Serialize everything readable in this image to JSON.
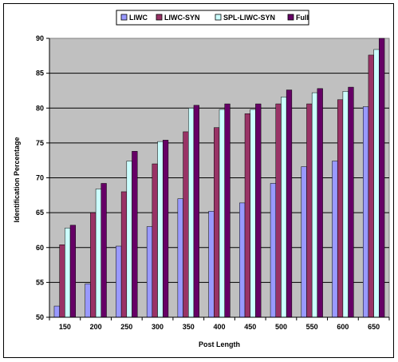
{
  "chart_data": {
    "type": "bar",
    "title": "",
    "xlabel": "Post Length",
    "ylabel": "Identification Percentage",
    "ylim": [
      50,
      90
    ],
    "yticks": [
      50,
      55,
      60,
      65,
      70,
      75,
      80,
      85,
      90
    ],
    "grid": true,
    "legend_position": "top",
    "categories": [
      "150",
      "200",
      "250",
      "300",
      "350",
      "400",
      "450",
      "500",
      "550",
      "600",
      "650"
    ],
    "series": [
      {
        "name": "LIWC",
        "color": "#9999ff",
        "values": [
          51.6,
          54.8,
          60.2,
          63.0,
          67.0,
          65.2,
          66.4,
          69.2,
          71.6,
          72.4,
          80.2
        ]
      },
      {
        "name": "LIWC-SYN",
        "color": "#993366",
        "values": [
          60.4,
          65.0,
          68.0,
          72.0,
          76.6,
          77.2,
          79.2,
          80.6,
          80.6,
          81.2,
          87.6
        ]
      },
      {
        "name": "SPL-LIWC-SYN",
        "color": "#ccffff",
        "values": [
          62.8,
          68.4,
          72.4,
          75.2,
          80.0,
          79.8,
          79.8,
          81.6,
          82.2,
          82.4,
          88.4
        ]
      },
      {
        "name": "Full",
        "color": "#660066",
        "values": [
          63.2,
          69.2,
          73.8,
          75.4,
          80.4,
          80.6,
          80.6,
          82.6,
          82.8,
          83.0,
          90.0
        ]
      }
    ]
  }
}
